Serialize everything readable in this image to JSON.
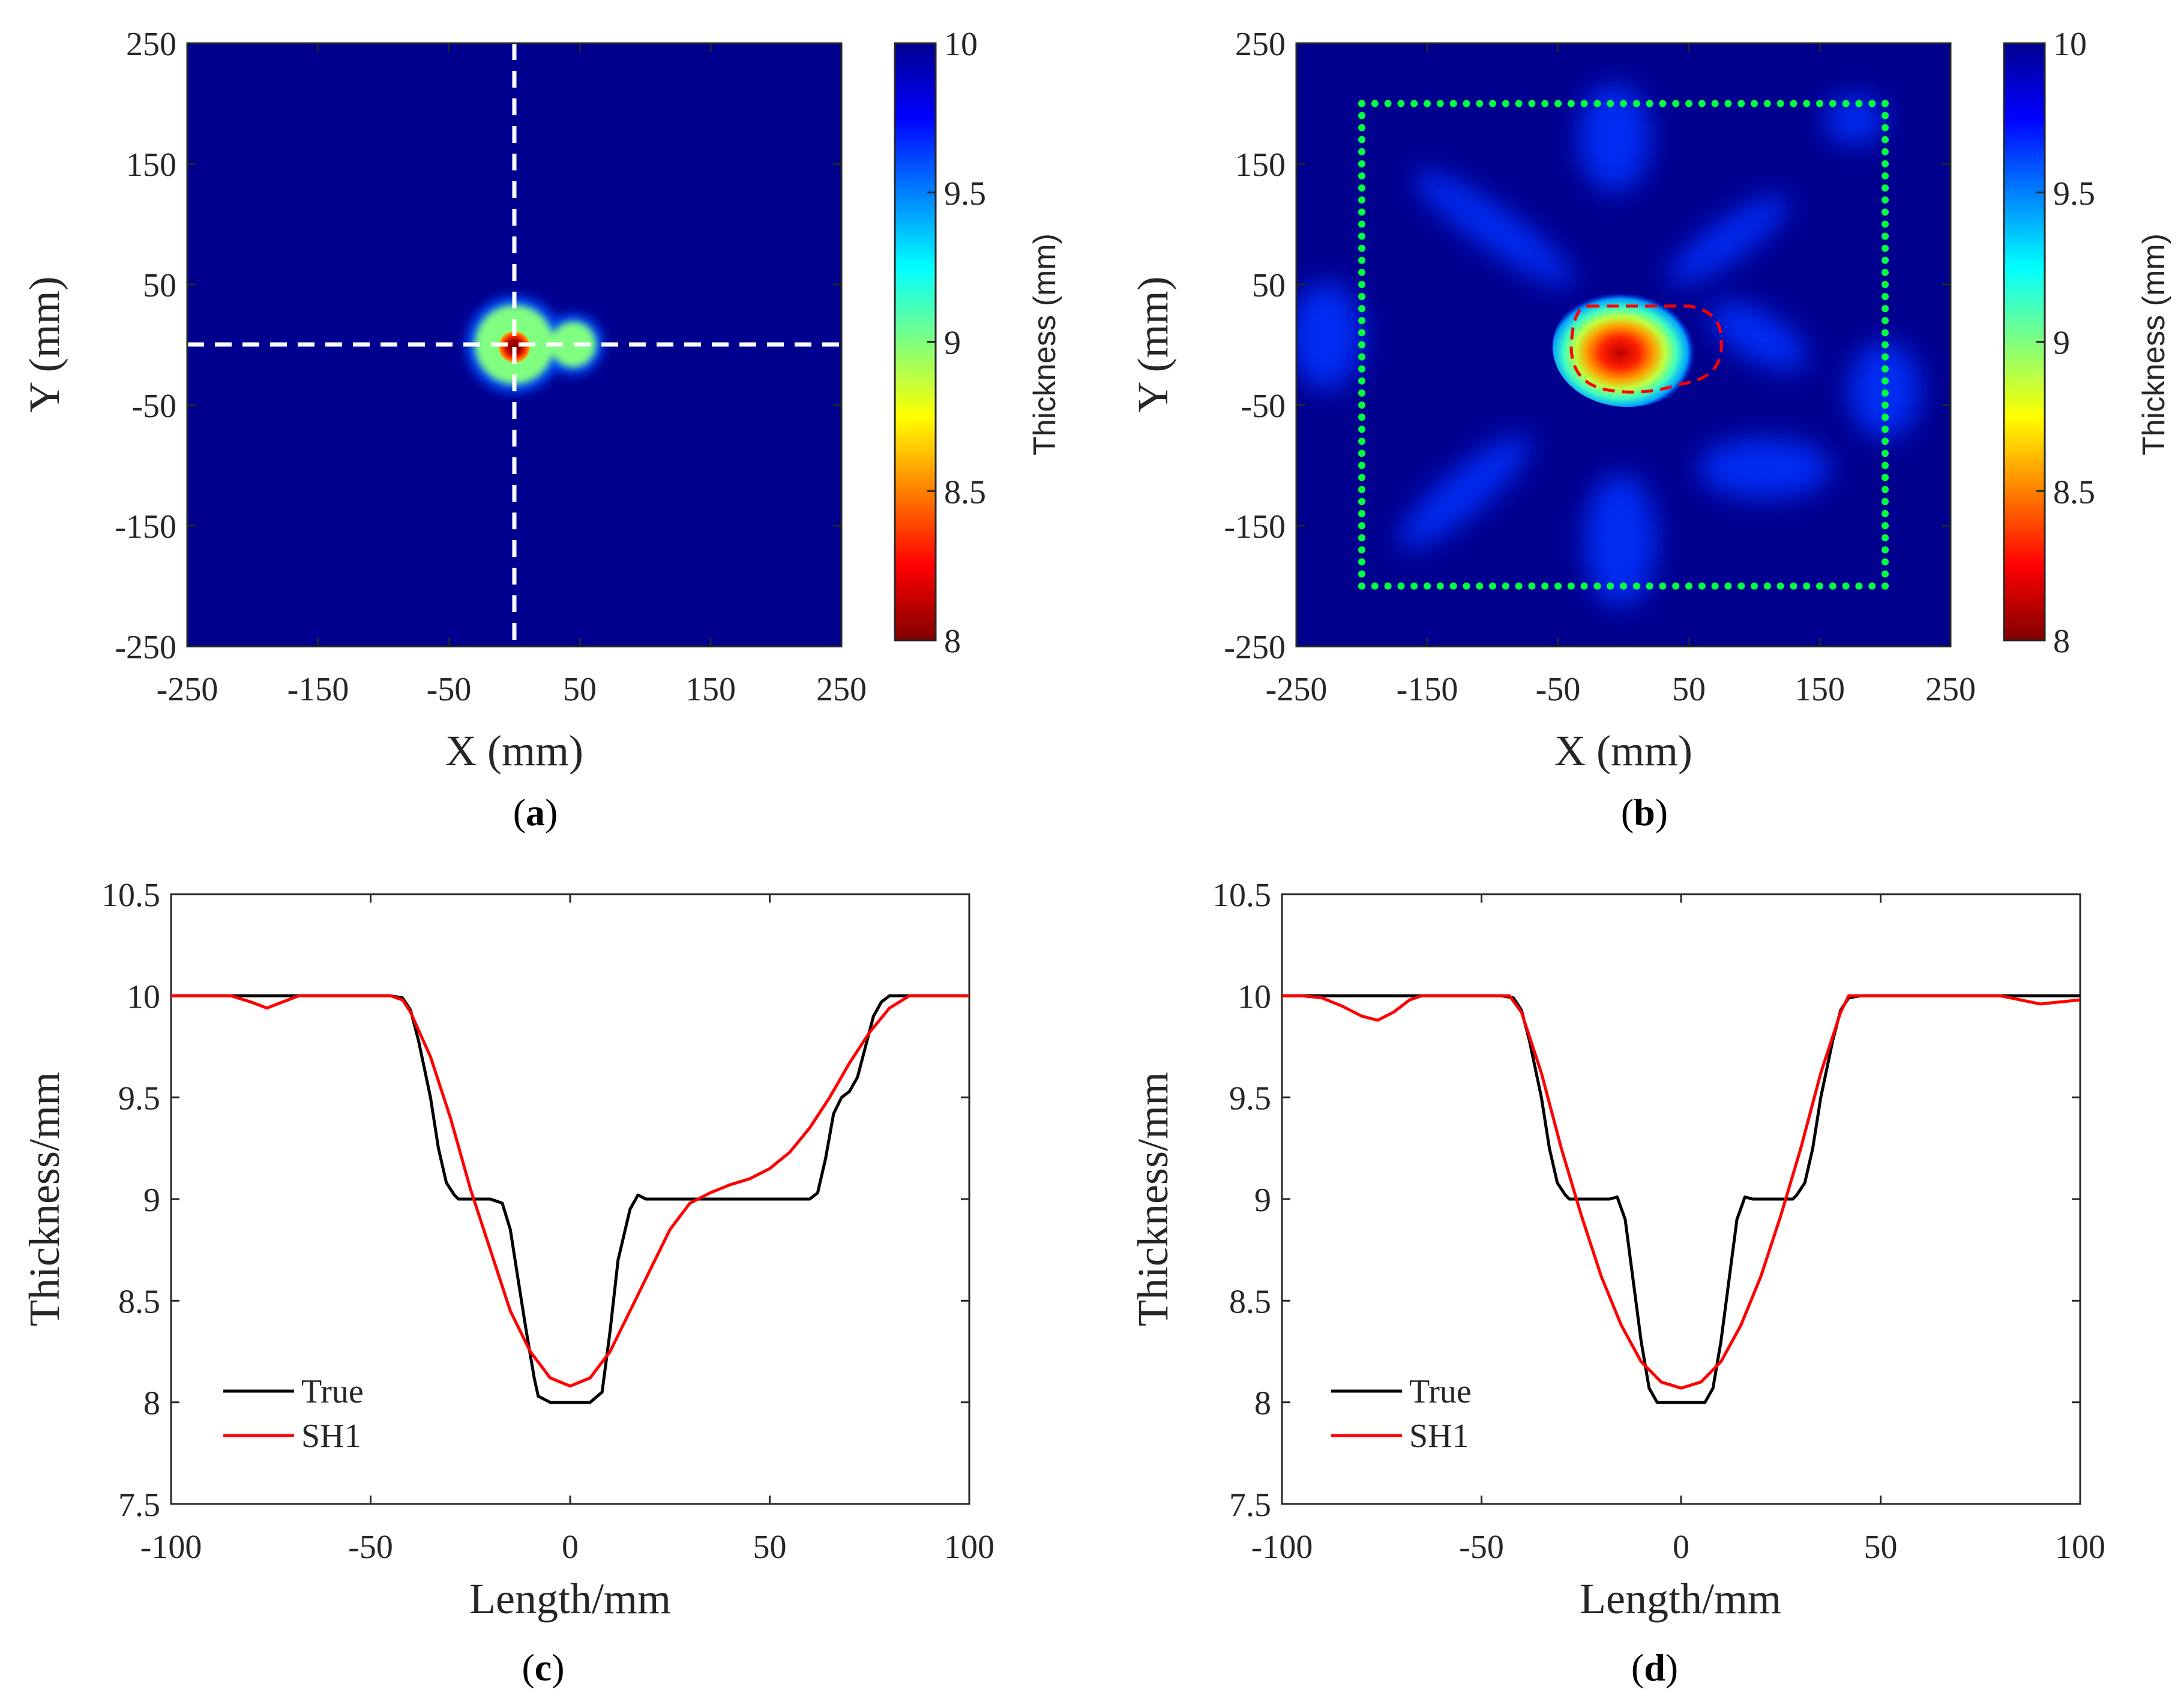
{
  "chart_data": [
    {
      "panel": "a",
      "type": "heatmap",
      "caption_open": "(",
      "caption_letter": "a",
      "caption_close": ")",
      "xlabel": "X (mm)",
      "ylabel": "Y (mm)",
      "xlim": [
        -250,
        250
      ],
      "ylim": [
        -250,
        250
      ],
      "xticks": [
        -250,
        -150,
        -50,
        50,
        150,
        250
      ],
      "yticks": [
        250,
        150,
        50,
        -50,
        -150,
        -250
      ],
      "colorbar": {
        "label": "Thickness (mm)",
        "range": [
          8,
          10
        ],
        "ticks": [
          10,
          9.5,
          9,
          8.5,
          8
        ]
      },
      "background_value": 10,
      "features": [
        {
          "shape": "lobe",
          "center": [
            0,
            0
          ],
          "radius": 36,
          "value": 9
        },
        {
          "shape": "lobe",
          "center": [
            45,
            0
          ],
          "radius": 20,
          "value": 9
        },
        {
          "shape": "pit",
          "center": [
            0,
            0
          ],
          "radius": 10,
          "value": 8
        }
      ],
      "guide_lines": {
        "horizontal_y": 0,
        "vertical_x": 0,
        "style": "white dashed"
      }
    },
    {
      "panel": "b",
      "type": "heatmap",
      "caption_open": "(",
      "caption_letter": "b",
      "caption_close": ")",
      "xlabel": "X (mm)",
      "ylabel": "Y (mm)",
      "xlim": [
        -250,
        250
      ],
      "ylim": [
        -250,
        250
      ],
      "xticks": [
        -250,
        -150,
        -50,
        50,
        150,
        250
      ],
      "yticks": [
        250,
        150,
        50,
        -50,
        -150,
        -250
      ],
      "colorbar": {
        "label": "Thickness (mm)",
        "range": [
          8,
          10
        ],
        "ticks": [
          10,
          9.5,
          9,
          8.5,
          8
        ]
      },
      "background_value": 10,
      "defect_center": [
        0,
        0
      ],
      "defect_min": 8.1,
      "transducer_array": {
        "extent": [
          -200,
          200
        ],
        "style": "green dotted square"
      },
      "defect_outline": {
        "style": "red dashed"
      }
    },
    {
      "panel": "c",
      "type": "line",
      "caption_open": "(",
      "caption_letter": "c",
      "caption_close": ")",
      "xlabel": "Length/mm",
      "ylabel": "Thickness/mm",
      "xlim": [
        -100,
        100
      ],
      "ylim": [
        7.5,
        10.5
      ],
      "xticks": [
        -100,
        -50,
        0,
        50,
        100
      ],
      "yticks": [
        10.5,
        10,
        9.5,
        9,
        8.5,
        8,
        7.5
      ],
      "legend": "lower-left",
      "series": [
        {
          "name": "True",
          "color": "#000000",
          "x": [
            -100,
            -85,
            -80,
            -75,
            -70,
            -45,
            -42,
            -40,
            -38,
            -35,
            -33,
            -31,
            -29,
            -28,
            -20,
            -17,
            -15,
            -13,
            -11,
            -9,
            -8,
            -5,
            5,
            8,
            10,
            12,
            15,
            17,
            18,
            19,
            20,
            25,
            60,
            62,
            64,
            66,
            68,
            70,
            72,
            74,
            76,
            78,
            80,
            82,
            100
          ],
          "y": [
            10,
            10,
            10,
            10,
            10,
            10,
            9.99,
            9.93,
            9.78,
            9.5,
            9.25,
            9.08,
            9.02,
            9,
            9,
            8.98,
            8.85,
            8.6,
            8.35,
            8.12,
            8.03,
            8,
            8,
            8.05,
            8.35,
            8.7,
            8.95,
            9.02,
            9.01,
            9,
            9,
            9,
            9,
            9.03,
            9.2,
            9.42,
            9.5,
            9.53,
            9.6,
            9.75,
            9.9,
            9.97,
            10,
            10,
            10
          ]
        },
        {
          "name": "SH1",
          "color": "#ff0000",
          "x": [
            -100,
            -85,
            -80,
            -76,
            -72,
            -68,
            -45,
            -42,
            -40,
            -35,
            -30,
            -25,
            -20,
            -15,
            -10,
            -5,
            0,
            5,
            10,
            15,
            20,
            25,
            30,
            35,
            40,
            45,
            50,
            55,
            60,
            65,
            70,
            75,
            80,
            85,
            90,
            100
          ],
          "y": [
            10,
            10,
            9.97,
            9.94,
            9.97,
            10,
            10,
            9.98,
            9.92,
            9.7,
            9.4,
            9.05,
            8.75,
            8.45,
            8.25,
            8.12,
            8.08,
            8.12,
            8.25,
            8.45,
            8.65,
            8.85,
            8.98,
            9.03,
            9.07,
            9.1,
            9.15,
            9.23,
            9.35,
            9.5,
            9.67,
            9.82,
            9.94,
            10,
            10,
            10
          ]
        }
      ],
      "legend_labels": [
        "True",
        "SH1"
      ]
    },
    {
      "panel": "d",
      "type": "line",
      "caption_open": "(",
      "caption_letter": "d",
      "caption_close": ")",
      "xlabel": "Length/mm",
      "ylabel": "Thickness/mm",
      "xlim": [
        -100,
        100
      ],
      "ylim": [
        7.5,
        10.5
      ],
      "xticks": [
        -100,
        -50,
        0,
        50,
        100
      ],
      "yticks": [
        10.5,
        10,
        9.5,
        9,
        8.5,
        8,
        7.5
      ],
      "legend": "lower-left",
      "series": [
        {
          "name": "True",
          "color": "#000000",
          "x": [
            -100,
            -45,
            -42,
            -40,
            -38,
            -35,
            -33,
            -31,
            -29,
            -28,
            -18,
            -16,
            -14,
            -12,
            -10,
            -8,
            -6,
            6,
            8,
            10,
            12,
            14,
            16,
            18,
            28,
            29,
            31,
            33,
            35,
            38,
            40,
            42,
            45,
            100
          ],
          "y": [
            10,
            10,
            9.99,
            9.93,
            9.78,
            9.5,
            9.25,
            9.08,
            9.02,
            9,
            9,
            9.01,
            8.9,
            8.6,
            8.3,
            8.07,
            8,
            8,
            8.07,
            8.3,
            8.6,
            8.9,
            9.01,
            9,
            9,
            9.02,
            9.08,
            9.25,
            9.5,
            9.78,
            9.93,
            9.99,
            10,
            10
          ]
        },
        {
          "name": "SH1",
          "color": "#ff0000",
          "x": [
            -100,
            -95,
            -90,
            -85,
            -80,
            -76,
            -72,
            -68,
            -65,
            -43,
            -40,
            -35,
            -30,
            -25,
            -20,
            -15,
            -10,
            -5,
            0,
            5,
            10,
            15,
            20,
            25,
            30,
            35,
            40,
            42,
            80,
            85,
            90,
            95,
            100
          ],
          "y": [
            10,
            10,
            9.99,
            9.95,
            9.9,
            9.88,
            9.92,
            9.98,
            10,
            10,
            9.92,
            9.62,
            9.25,
            8.92,
            8.62,
            8.38,
            8.2,
            8.1,
            8.07,
            8.1,
            8.2,
            8.38,
            8.62,
            8.92,
            9.25,
            9.62,
            9.92,
            10,
            10,
            9.98,
            9.96,
            9.97,
            9.98
          ]
        }
      ],
      "legend_labels": [
        "True",
        "SH1"
      ]
    }
  ]
}
